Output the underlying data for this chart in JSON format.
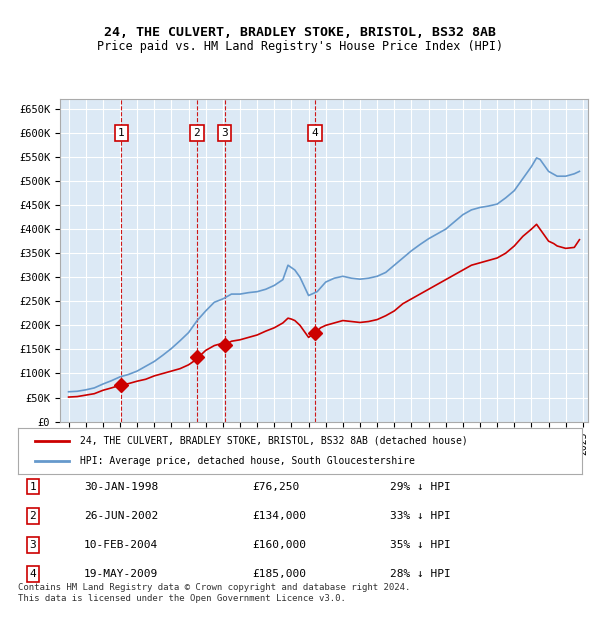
{
  "title1": "24, THE CULVERT, BRADLEY STOKE, BRISTOL, BS32 8AB",
  "title2": "Price paid vs. HM Land Registry's House Price Index (HPI)",
  "ylabel": "",
  "background_color": "#dce9f5",
  "plot_bg": "#dce9f5",
  "grid_color": "#ffffff",
  "red_line_color": "#cc0000",
  "blue_line_color": "#6699cc",
  "transactions": [
    {
      "num": 1,
      "date": "1998-01-30",
      "price": 76250,
      "label": "30-JAN-1998",
      "pct": "29%"
    },
    {
      "num": 2,
      "date": "2002-06-26",
      "price": 134000,
      "label": "26-JUN-2002",
      "pct": "33%"
    },
    {
      "num": 3,
      "date": "2004-02-10",
      "price": 160000,
      "label": "10-FEB-2004",
      "pct": "35%"
    },
    {
      "num": 4,
      "date": "2009-05-19",
      "price": 185000,
      "label": "19-MAY-2009",
      "pct": "28%"
    }
  ],
  "legend_red": "24, THE CULVERT, BRADLEY STOKE, BRISTOL, BS32 8AB (detached house)",
  "legend_blue": "HPI: Average price, detached house, South Gloucestershire",
  "footer": "Contains HM Land Registry data © Crown copyright and database right 2024.\nThis data is licensed under the Open Government Licence v3.0.",
  "ylim": [
    0,
    670000
  ],
  "yticks": [
    0,
    50000,
    100000,
    150000,
    200000,
    250000,
    300000,
    350000,
    400000,
    450000,
    500000,
    550000,
    600000,
    650000
  ],
  "hpi_base_value": 76250,
  "hpi_base_date": "1998-01-30"
}
